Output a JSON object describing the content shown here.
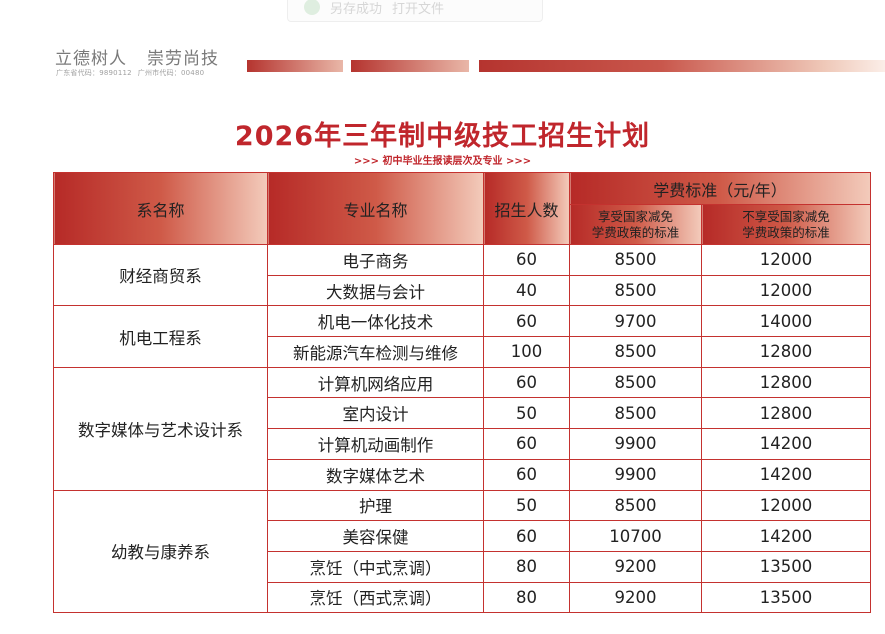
{
  "header": {
    "motto_left": "立德树人",
    "motto_right": "崇劳尚技",
    "code_province": "广东省代码：9890112",
    "code_city": "广州市代码：00480"
  },
  "toolbar_ghost": {
    "item1": "另存成功",
    "item2": "打开文件"
  },
  "title": "2026年三年制中级技工招生计划",
  "subtitle": ">>> 初中毕业生报读层次及专业 >>>",
  "table": {
    "headers": {
      "department": "系名称",
      "major": "专业名称",
      "enrollment": "招生人数",
      "fee": "学费标准（元/年）",
      "fee_reduced": [
        "享受国家减免",
        "学费政策的标准"
      ],
      "fee_full": [
        "不享受国家减免",
        "学费政策的标准"
      ]
    },
    "departments": [
      {
        "name": "财经商贸系",
        "rows": [
          {
            "major": "电子商务",
            "enrollment": "60",
            "fee_reduced": "8500",
            "fee_full": "12000"
          },
          {
            "major": "大数据与会计",
            "enrollment": "40",
            "fee_reduced": "8500",
            "fee_full": "12000"
          }
        ]
      },
      {
        "name": "机电工程系",
        "rows": [
          {
            "major": "机电一体化技术",
            "enrollment": "60",
            "fee_reduced": "9700",
            "fee_full": "14000"
          },
          {
            "major": "新能源汽车检测与维修",
            "enrollment": "100",
            "fee_reduced": "8500",
            "fee_full": "12800"
          }
        ]
      },
      {
        "name": "数字媒体与艺术设计系",
        "rows": [
          {
            "major": "计算机网络应用",
            "enrollment": "60",
            "fee_reduced": "8500",
            "fee_full": "12800"
          },
          {
            "major": "室内设计",
            "enrollment": "50",
            "fee_reduced": "8500",
            "fee_full": "12800"
          },
          {
            "major": "计算机动画制作",
            "enrollment": "60",
            "fee_reduced": "9900",
            "fee_full": "14200"
          },
          {
            "major": "数字媒体艺术",
            "enrollment": "60",
            "fee_reduced": "9900",
            "fee_full": "14200"
          }
        ]
      },
      {
        "name": "幼教与康养系",
        "rows": [
          {
            "major": "护理",
            "enrollment": "50",
            "fee_reduced": "8500",
            "fee_full": "12000"
          },
          {
            "major": "美容保健",
            "enrollment": "60",
            "fee_reduced": "10700",
            "fee_full": "14200"
          },
          {
            "major": "烹饪（中式烹调）",
            "enrollment": "80",
            "fee_reduced": "9200",
            "fee_full": "13500"
          },
          {
            "major": "烹饪（西式烹调）",
            "enrollment": "80",
            "fee_reduced": "9200",
            "fee_full": "13500"
          }
        ]
      }
    ]
  },
  "colors": {
    "accent_red": "#c0262c",
    "border_red": "#c4322f",
    "header_gradient_start": "#b62a27",
    "header_gradient_end": "#f3cbbb"
  }
}
